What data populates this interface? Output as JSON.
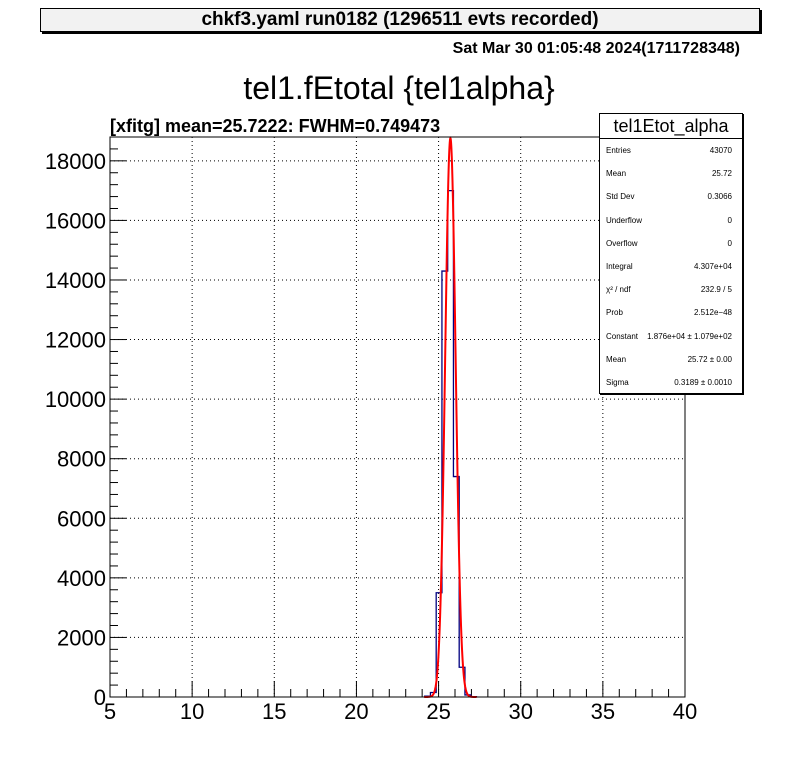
{
  "header": {
    "title": "chkf3.yaml  run0182 (1296511 evts recorded)",
    "date": "Sat Mar 30 01:05:48 2024(1711728348)"
  },
  "histogram": {
    "title": "tel1.fEtotal {tel1alpha}",
    "fit_label": "[xfitg] mean=25.7222: FWHM=0.749473"
  },
  "stats": {
    "name": "tel1Etot_alpha",
    "rows": [
      {
        "label": "Entries",
        "value": "43070"
      },
      {
        "label": "Mean",
        "value": "25.72"
      },
      {
        "label": "Std Dev",
        "value": "0.3066"
      },
      {
        "label": "Underflow",
        "value": "0"
      },
      {
        "label": "Overflow",
        "value": "0"
      },
      {
        "label": "Integral",
        "value": "4.307e+04"
      },
      {
        "label": "χ² / ndf",
        "value": "232.9 / 5"
      },
      {
        "label": "Prob",
        "value": "2.512e−48"
      },
      {
        "label": "Constant",
        "value": "1.876e+04 ± 1.079e+02"
      },
      {
        "label": "Mean",
        "value": "25.72 ± 0.00"
      },
      {
        "label": "Sigma",
        "value": "0.3189 ± 0.0010"
      }
    ]
  },
  "chart_data": {
    "type": "bar",
    "xlim": [
      5,
      40
    ],
    "ylim": [
      0,
      18800
    ],
    "x_ticks": [
      5,
      10,
      15,
      20,
      25,
      30,
      35,
      40
    ],
    "y_ticks": [
      0,
      2000,
      4000,
      6000,
      8000,
      10000,
      12000,
      14000,
      16000,
      18000
    ],
    "grid": true,
    "bin_width": 0.35,
    "bin_centers": [
      24.33,
      24.68,
      25.03,
      25.38,
      25.73,
      26.08,
      26.43,
      26.78,
      27.13
    ],
    "counts": [
      30,
      150,
      3500,
      14300,
      17000,
      7400,
      1000,
      70,
      10
    ],
    "hist_color": "#000080",
    "fit": {
      "function": "gaus",
      "constant": 18760,
      "mean": 25.72,
      "sigma": 0.3189,
      "color": "#ff0000"
    }
  }
}
